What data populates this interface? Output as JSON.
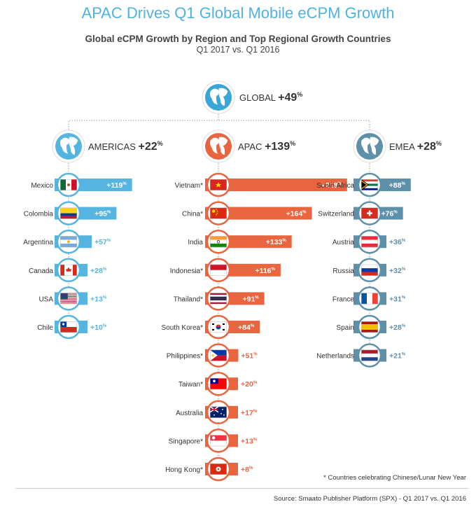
{
  "title": "APAC Drives Q1 Global Mobile eCPM Growth",
  "subtitle": "Global eCPM Growth by Region and Top Regional Growth Countries",
  "subtitle2": "Q1 2017 vs. Q1 2016",
  "footnote": "* Countries celebrating Chinese/Lunar New Year",
  "source": "Source: Smaato Publisher Platform (SPX) - Q1 2017 vs. Q1 2016",
  "colors": {
    "americas": "#56b5e0",
    "apac": "#e8653f",
    "emea": "#5e90aa",
    "title": "#4fb3de"
  },
  "chart_data": {
    "type": "bar",
    "unit": "%",
    "global": {
      "name": "GLOBAL",
      "value": 49,
      "label": "+49",
      "suffix": "%"
    },
    "series": [
      {
        "name": "AMERICAS",
        "value": 22,
        "label": "+22",
        "suffix": "%",
        "color": "#56b5e0",
        "countries": [
          {
            "name": "Mexico",
            "value": 119,
            "label": "+119",
            "flag": "mexico"
          },
          {
            "name": "Colombia",
            "value": 95,
            "label": "+95",
            "flag": "colombia"
          },
          {
            "name": "Argentina",
            "value": 57,
            "label": "+57",
            "flag": "argentina"
          },
          {
            "name": "Canada",
            "value": 28,
            "label": "+28",
            "flag": "canada"
          },
          {
            "name": "USA",
            "value": 13,
            "label": "+13",
            "flag": "usa"
          },
          {
            "name": "Chile",
            "value": 10,
            "label": "+10",
            "flag": "chile"
          }
        ]
      },
      {
        "name": "APAC",
        "value": 139,
        "label": "+139",
        "suffix": "%",
        "color": "#e8653f",
        "countries": [
          {
            "name": "Vietnam*",
            "value": 218,
            "label": "+218",
            "flag": "vietnam"
          },
          {
            "name": "China*",
            "value": 164,
            "label": "+164",
            "flag": "china"
          },
          {
            "name": "India",
            "value": 133,
            "label": "+133",
            "flag": "india"
          },
          {
            "name": "Indonesia*",
            "value": 116,
            "label": "+116",
            "flag": "indonesia"
          },
          {
            "name": "Thailand*",
            "value": 91,
            "label": "+91",
            "flag": "thailand"
          },
          {
            "name": "South Korea*",
            "value": 84,
            "label": "+84",
            "flag": "korea"
          },
          {
            "name": "Philippines*",
            "value": 51,
            "label": "+51",
            "flag": "philippines"
          },
          {
            "name": "Taiwan*",
            "value": 20,
            "label": "+20",
            "flag": "taiwan"
          },
          {
            "name": "Australia",
            "value": 17,
            "label": "+17",
            "flag": "australia"
          },
          {
            "name": "Singapore*",
            "value": 13,
            "label": "+13",
            "flag": "singapore"
          },
          {
            "name": "Hong Kong*",
            "value": 8,
            "label": "+8",
            "flag": "hongkong"
          }
        ]
      },
      {
        "name": "EMEA",
        "value": 28,
        "label": "+28",
        "suffix": "%",
        "color": "#5e90aa",
        "countries": [
          {
            "name": "South Africa",
            "value": 88,
            "label": "+88",
            "flag": "southafrica"
          },
          {
            "name": "Switzerland",
            "value": 76,
            "label": "+76",
            "flag": "switzerland"
          },
          {
            "name": "Austria",
            "value": 36,
            "label": "+36",
            "flag": "austria"
          },
          {
            "name": "Russia",
            "value": 32,
            "label": "+32",
            "flag": "russia"
          },
          {
            "name": "France",
            "value": 31,
            "label": "+31",
            "flag": "france"
          },
          {
            "name": "Spain",
            "value": 28,
            "label": "+28",
            "flag": "spain"
          },
          {
            "name": "Netherlands",
            "value": 21,
            "label": "+21",
            "flag": "netherlands"
          }
        ]
      }
    ]
  }
}
